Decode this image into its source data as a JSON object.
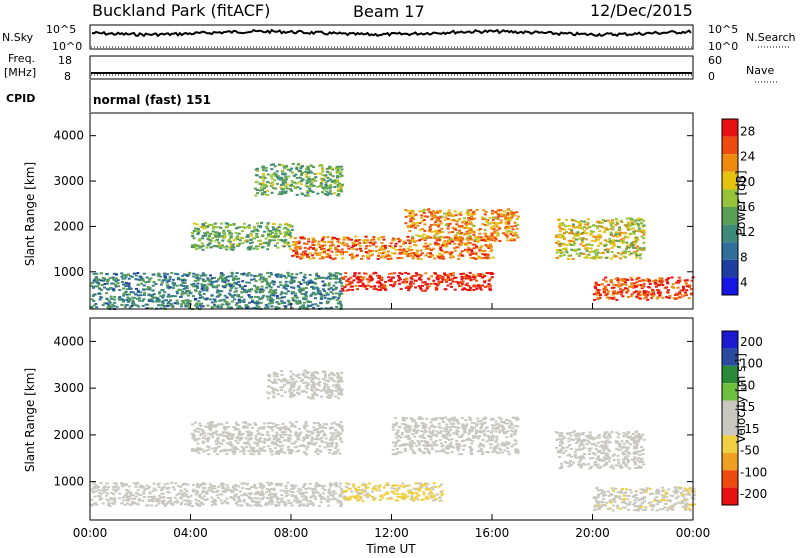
{
  "header": {
    "radar": "Buckland Park (fitACF)",
    "beam": "Beam 17",
    "date": "12/Dec/2015"
  },
  "noise_panel": {
    "left_label": "N.Sky",
    "left_ticks": [
      "10^5",
      "10^0"
    ],
    "right_label": "N.Search",
    "right_ticks": [
      "10^5",
      "10^0"
    ]
  },
  "freq_panel": {
    "left_label_1": "Freq.",
    "left_label_2": "[MHz]",
    "left_ticks": [
      "18",
      "8"
    ],
    "right_label": "Nave",
    "right_ticks": [
      "60",
      "0"
    ]
  },
  "cpid": {
    "label": "CPID",
    "text": "normal (fast) 151"
  },
  "x_axis": {
    "label": "Time UT",
    "ticks": [
      "00:00",
      "04:00",
      "08:00",
      "12:00",
      "16:00",
      "20:00",
      "00:00"
    ]
  },
  "colors": {
    "power_scale": [
      "#1515e6",
      "#1f3fa0",
      "#2f6f9a",
      "#3e8a78",
      "#5a9e55",
      "#95c43a",
      "#e6c210",
      "#ee8a10",
      "#ee4a10",
      "#e81010"
    ],
    "velocity_scale": [
      "#e81010",
      "#ee4a10",
      "#f0a020",
      "#f0d040",
      "#c8c8c0",
      "#c8c8c0",
      "#70c040",
      "#2a8a3a",
      "#2a4aa0",
      "#1a1ad0"
    ]
  },
  "chart_data": [
    {
      "type": "heatmap",
      "title": "",
      "xlabel": "Time UT",
      "ylabel": "Slant Range [km]",
      "x_range": [
        "00:00",
        "24:00"
      ],
      "ylim": [
        180,
        4500
      ],
      "y_ticks": [
        "1000",
        "2000",
        "3000",
        "4000"
      ],
      "colorbar": {
        "label": "Power [dB]",
        "ticks": [
          "28",
          "24",
          "20",
          "16",
          "12",
          "8",
          "4"
        ],
        "range": [
          0,
          30
        ]
      },
      "regions": [
        {
          "t_start": 0.0,
          "t_end": 10.0,
          "range_start": 200,
          "range_end": 1000,
          "power": 10
        },
        {
          "t_start": 4.0,
          "t_end": 8.0,
          "range_start": 1500,
          "range_end": 2100,
          "power": 14
        },
        {
          "t_start": 6.5,
          "t_end": 10.0,
          "range_start": 2700,
          "range_end": 3400,
          "power": 14
        },
        {
          "t_start": 8.0,
          "t_end": 16.0,
          "range_start": 1300,
          "range_end": 1800,
          "power": 24
        },
        {
          "t_start": 10.0,
          "t_end": 16.0,
          "range_start": 600,
          "range_end": 1000,
          "power": 28
        },
        {
          "t_start": 12.5,
          "t_end": 17.0,
          "range_start": 1700,
          "range_end": 2400,
          "power": 22
        },
        {
          "t_start": 18.5,
          "t_end": 22.0,
          "range_start": 1300,
          "range_end": 2200,
          "power": 18
        },
        {
          "t_start": 20.0,
          "t_end": 24.0,
          "range_start": 400,
          "range_end": 900,
          "power": 26
        }
      ]
    },
    {
      "type": "heatmap",
      "title": "",
      "xlabel": "Time UT",
      "ylabel": "Slant Range [km]",
      "x_range": [
        "00:00",
        "24:00"
      ],
      "ylim": [
        180,
        4500
      ],
      "y_ticks": [
        "1000",
        "2000",
        "3000",
        "4000"
      ],
      "colorbar": {
        "label": "Velocity [m s^-1]",
        "ticks": [
          "200",
          "100",
          "50",
          "15",
          "-15",
          "-50",
          "-100",
          "-200"
        ],
        "range": [
          -250,
          250
        ]
      },
      "regions": [
        {
          "t_start": 0.0,
          "t_end": 10.0,
          "range_start": 500,
          "range_end": 1000,
          "velocity": 0
        },
        {
          "t_start": 4.0,
          "t_end": 10.0,
          "range_start": 1600,
          "range_end": 2300,
          "velocity": -10
        },
        {
          "t_start": 7.0,
          "t_end": 10.0,
          "range_start": 2800,
          "range_end": 3400,
          "velocity": 10
        },
        {
          "t_start": 10.0,
          "t_end": 14.0,
          "range_start": 600,
          "range_end": 1000,
          "velocity": -60
        },
        {
          "t_start": 12.0,
          "t_end": 17.0,
          "range_start": 1600,
          "range_end": 2400,
          "velocity": -20
        },
        {
          "t_start": 18.5,
          "t_end": 22.0,
          "range_start": 1300,
          "range_end": 2100,
          "velocity": 0
        },
        {
          "t_start": 20.0,
          "t_end": 24.0,
          "range_start": 400,
          "range_end": 900,
          "velocity": -30
        }
      ]
    }
  ]
}
